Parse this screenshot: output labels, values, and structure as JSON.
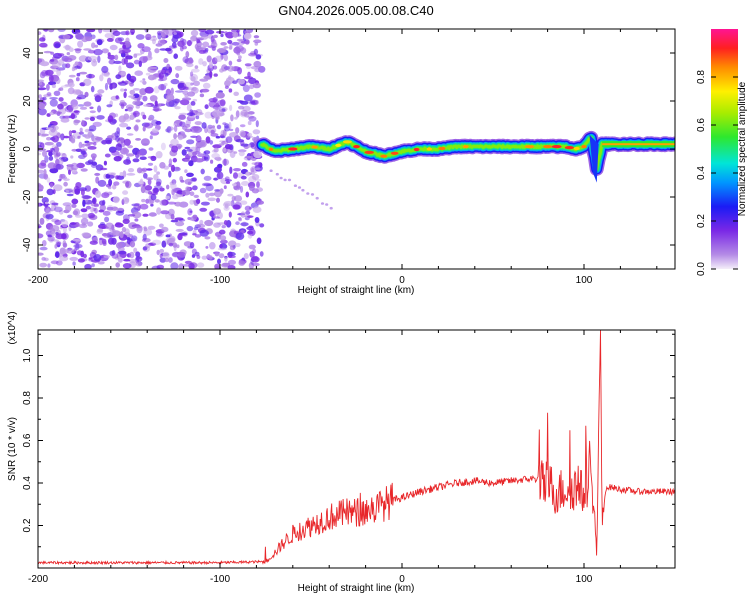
{
  "figure_title": "GN04.2026.005.00.08.C40",
  "colorbar": {
    "label": "Normalized spectral amplitude",
    "tick_labels": [
      "0.0",
      "0.2",
      "0.4",
      "0.6",
      "0.8"
    ],
    "tick_values": [
      0.0,
      0.2,
      0.4,
      0.6,
      0.8
    ],
    "range": [
      0,
      1
    ]
  },
  "chart_data": [
    {
      "type": "heatmap",
      "title": "",
      "xlabel": "Height of straight line (km)",
      "ylabel": "Frequency (Hz)",
      "xlim": [
        -200,
        150
      ],
      "ylim": [
        -50,
        50
      ],
      "x_ticks": [
        -200,
        -100,
        0,
        100
      ],
      "x_tick_labels": [
        "-200",
        "-100",
        "0",
        "100"
      ],
      "y_ticks": [
        -40,
        -20,
        0,
        20,
        40
      ],
      "y_tick_labels": [
        "-40",
        "-20",
        "0",
        "20",
        "40"
      ],
      "noise_region_x": [
        -200,
        -77
      ],
      "ridge": {
        "x": [
          -77,
          -70,
          -60,
          -50,
          -40,
          -30,
          -25,
          -20,
          -15,
          -10,
          -5,
          0,
          10,
          20,
          30,
          40,
          50,
          60,
          70,
          80,
          90,
          95,
          100,
          104,
          107,
          110,
          120,
          130,
          140,
          150
        ],
        "y": [
          2,
          -1,
          0,
          1,
          0,
          3,
          1,
          -1,
          -2,
          -3,
          -2,
          -1,
          0,
          0,
          1,
          1,
          1,
          1,
          1,
          1,
          1,
          0,
          1,
          5,
          -8,
          2,
          2,
          2,
          2,
          2
        ],
        "peak_amplitude": 0.95
      }
    },
    {
      "type": "line",
      "title": "",
      "xlabel": "Height of straight line (km)",
      "ylabel": "SNR (10 * v/v)",
      "y_multiplier": "(x10^4)",
      "xlim": [
        -200,
        150
      ],
      "ylim": [
        0,
        1.12
      ],
      "x_ticks": [
        -200,
        -100,
        0,
        100
      ],
      "x_tick_labels": [
        "-200",
        "-100",
        "0",
        "100"
      ],
      "y_ticks": [
        0.2,
        0.4,
        0.6,
        0.8,
        1.0
      ],
      "y_tick_labels": [
        "0.2",
        "0.4",
        "0.6",
        "0.8",
        "1.0"
      ],
      "series": [
        {
          "name": "SNR",
          "color": "#e8272a",
          "x": [
            -200,
            -150,
            -100,
            -75,
            -70,
            -65,
            -60,
            -55,
            -50,
            -45,
            -40,
            -35,
            -30,
            -25,
            -20,
            -15,
            -10,
            -5,
            0,
            10,
            20,
            30,
            40,
            50,
            60,
            70,
            75,
            78,
            80,
            85,
            90,
            95,
            100,
            103,
            105,
            107,
            108,
            109,
            110,
            112,
            115,
            120,
            130,
            140,
            150
          ],
          "values": [
            0.025,
            0.025,
            0.025,
            0.03,
            0.07,
            0.12,
            0.16,
            0.18,
            0.2,
            0.22,
            0.24,
            0.25,
            0.26,
            0.26,
            0.27,
            0.28,
            0.3,
            0.32,
            0.33,
            0.36,
            0.38,
            0.4,
            0.41,
            0.4,
            0.41,
            0.42,
            0.42,
            0.38,
            0.4,
            0.35,
            0.38,
            0.38,
            0.35,
            0.45,
            0.35,
            0.06,
            0.6,
            1.12,
            0.2,
            0.38,
            0.38,
            0.37,
            0.36,
            0.36,
            0.36
          ]
        }
      ]
    }
  ]
}
